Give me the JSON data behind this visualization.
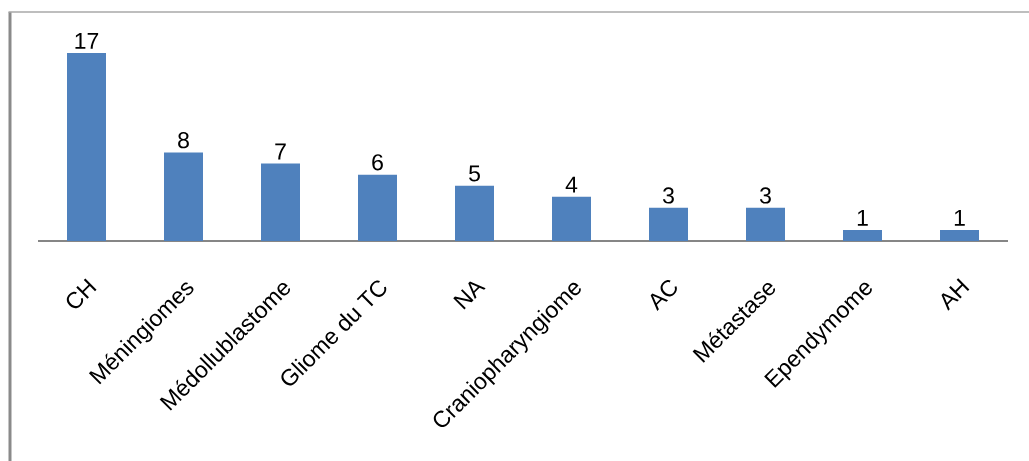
{
  "chart_data": {
    "type": "bar",
    "categories": [
      "CH",
      "Méningiomes",
      "Médollublastome",
      "Gliome du TC",
      "NA",
      "Craniopharyngiome",
      "AC",
      "Métastase",
      "Ependymome",
      "AH"
    ],
    "values": [
      17,
      8,
      7,
      6,
      5,
      4,
      3,
      3,
      1,
      1
    ],
    "color": "#4f81bd",
    "data_labels": true
  }
}
